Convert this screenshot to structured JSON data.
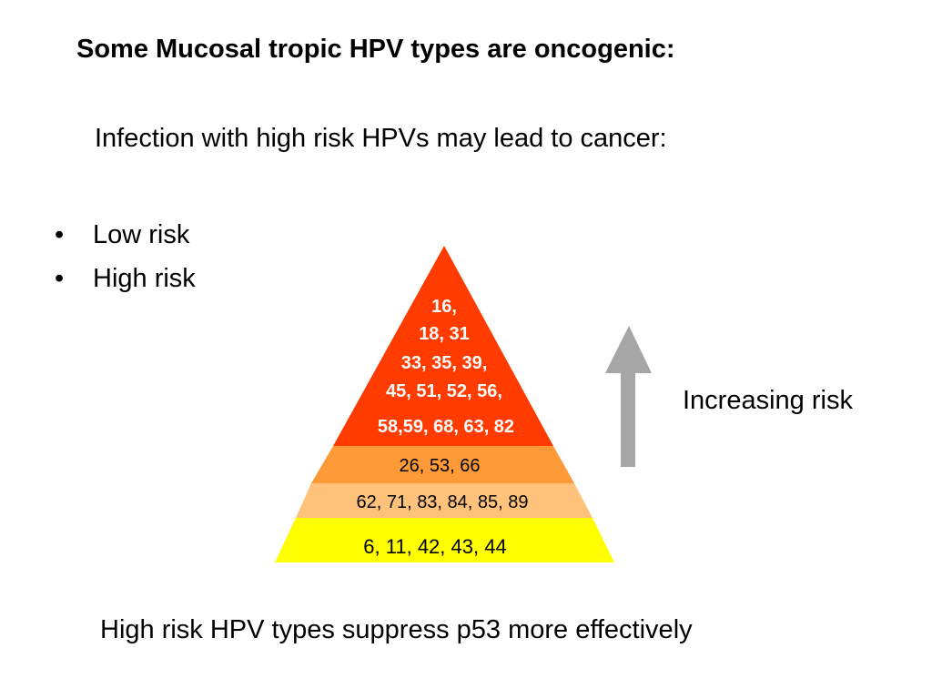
{
  "slide": {
    "title": "Some Mucosal tropic HPV types are oncogenic:",
    "subtitle": "Infection with high risk HPVs may lead to cancer:",
    "bullets": [
      {
        "marker": "•",
        "label": "Low risk"
      },
      {
        "marker": "•",
        "label": "High risk"
      }
    ],
    "increasing_label": "Increasing risk",
    "footer": "High risk HPV types suppress p53 more effectively"
  },
  "pyramid": {
    "top_tier": {
      "lines": [
        "16,",
        "18, 31",
        "33, 35, 39,",
        "45, 51, 52, 56,",
        "58,59, 68, 63, 82"
      ],
      "color": "#ff3b00"
    },
    "tier_2": {
      "label": "26, 53, 66",
      "color": "#ff9a38"
    },
    "tier_3": {
      "label": "62, 71, 83, 84, 85, 89",
      "color": "#ffc27a"
    },
    "tier_4": {
      "label": "6, 11, 42, 43, 44",
      "color": "#ffff00"
    }
  },
  "arrow": {
    "color": "#a6a6a6",
    "direction": "up"
  }
}
